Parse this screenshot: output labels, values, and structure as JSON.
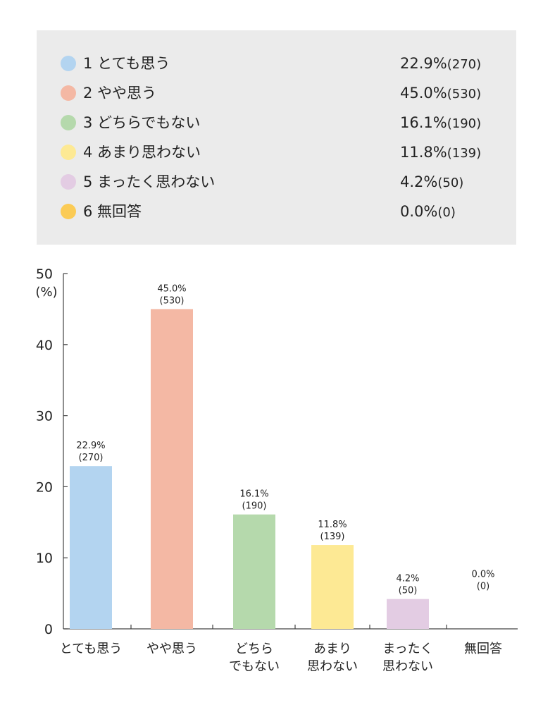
{
  "legend": {
    "items": [
      {
        "label": "1 とても思う",
        "value": "22.9%",
        "count": "(270)",
        "color": "#b3d4f0"
      },
      {
        "label": "2 やや思う",
        "value": "45.0%",
        "count": "(530)",
        "color": "#f4b8a4"
      },
      {
        "label": "3 どちらでもない",
        "value": "16.1%",
        "count": "(190)",
        "color": "#b5d9ac"
      },
      {
        "label": "4 あまり思わない",
        "value": "11.8%",
        "count": "(139)",
        "color": "#fde994"
      },
      {
        "label": "5 まったく思わない",
        "value": "4.2%",
        "count": "(50)",
        "color": "#e3cce3"
      },
      {
        "label": "6 無回答",
        "value": "0.0%",
        "count": "(0)",
        "color": "#fbcb55"
      }
    ]
  },
  "chart_data": {
    "type": "bar",
    "ylabel": "(%)",
    "ylim": [
      0,
      50
    ],
    "yticks": [
      "0",
      "10",
      "20",
      "30",
      "40",
      "50"
    ],
    "grid": false,
    "categories": [
      [
        "とても思う"
      ],
      [
        "やや思う"
      ],
      [
        "どちら",
        "でもない"
      ],
      [
        "あまり",
        "思わない"
      ],
      [
        "まったく",
        "思わない"
      ],
      [
        "無回答"
      ]
    ],
    "values": [
      22.9,
      45.0,
      16.1,
      11.8,
      4.2,
      0.0
    ],
    "value_labels": [
      "22.9%",
      "45.0%",
      "16.1%",
      "11.8%",
      "4.2%",
      "0.0%"
    ],
    "count_labels": [
      "(270)",
      "(530)",
      "(190)",
      "(139)",
      "(50)",
      "(0)"
    ],
    "colors": [
      "#b3d4f0",
      "#f4b8a4",
      "#b5d9ac",
      "#fde994",
      "#e3cce3",
      "#fbcb55"
    ]
  }
}
